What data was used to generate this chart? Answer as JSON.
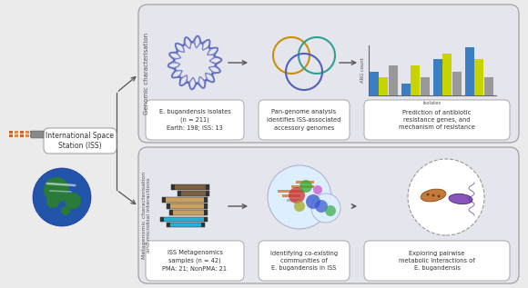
{
  "bg_color": "#ebebeb",
  "panel_bg": "#e5e5ee",
  "panel_border": "#aaaaaa",
  "white": "#ffffff",
  "arrow_color": "#555555",
  "iss_label": "International Space\nStation (ISS)",
  "genomic_label": "Genomic characterisation",
  "metagenomic_label": "Metagenomic characterisation\nand microbial interactions",
  "box1_text": "E. bugandensis isolates\n(n = 211)\nEarth: 198; ISS: 13",
  "box2_text": "Pan-genome analysis\nidentifies ISS-associated\naccessory genomes",
  "box3_text": "Prediction of antibiotic\nresistance genes, and\nmechanism of resistance",
  "box4_text": "ISS Metagenomics\nsamples (n = 42)\nPMA: 21; NonPMA: 21",
  "box5_text": "Identifying co-existing\ncommunities of\nE. bugandensis in ISS",
  "box6_text": "Exploring pairwise\nmetabolic interactions of\nE. bugandensis",
  "bar_colors": [
    "#3a7fc1",
    "#c8d400",
    "#999999"
  ],
  "bar_data": [
    [
      4,
      3,
      5
    ],
    [
      2,
      5,
      3
    ],
    [
      6,
      7,
      4
    ],
    [
      8,
      6,
      3
    ]
  ],
  "bar_xlabel": "Isolates",
  "bar_ylabel": "ARG count",
  "circle1_color": "#5060bb",
  "circle2_color": "#c8900a",
  "circle3_color": "#30a090",
  "text_color": "#333333",
  "label_color": "#555555",
  "read_bars": [
    [
      188,
      108,
      42,
      6,
      "#7a6040",
      0
    ],
    [
      195,
      101,
      35,
      6,
      "#7a6040",
      0
    ],
    [
      178,
      94,
      50,
      6,
      "#c8a060",
      0
    ],
    [
      183,
      87,
      45,
      6,
      "#c8a060",
      0
    ],
    [
      186,
      80,
      42,
      6,
      "#c8a060",
      0
    ],
    [
      176,
      73,
      52,
      5,
      "#28b0d0",
      0
    ],
    [
      183,
      67,
      42,
      5,
      "#28b0d0",
      0
    ]
  ]
}
